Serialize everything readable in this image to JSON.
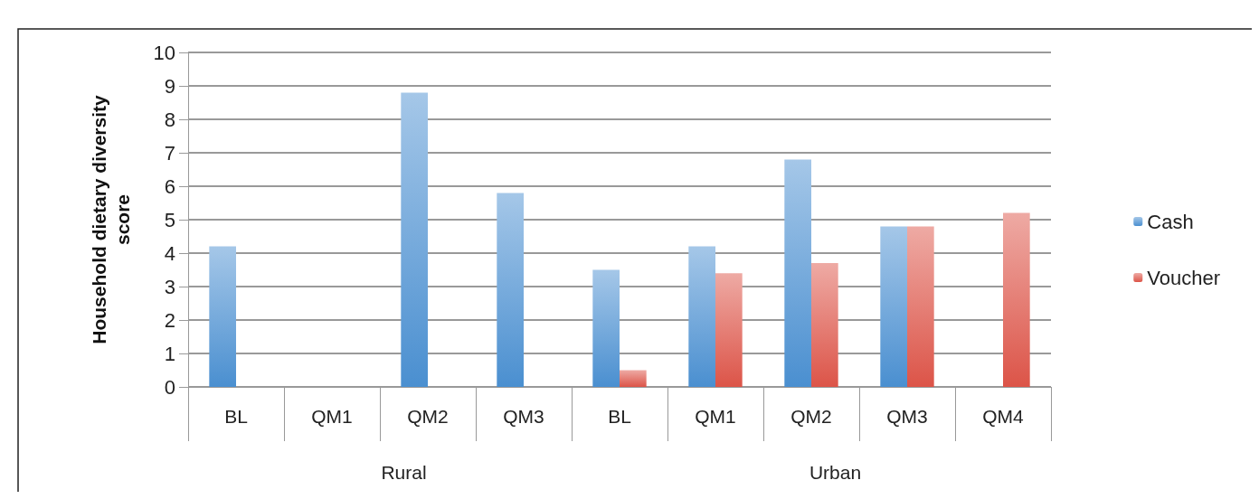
{
  "chart_data": {
    "type": "bar",
    "ylabel": "Household dietary diversity\nscore",
    "categories": [
      "BL",
      "QM1",
      "QM2",
      "QM3",
      "BL",
      "QM1",
      "QM2",
      "QM3",
      "QM4"
    ],
    "series": [
      {
        "name": "Cash",
        "color": "#4a8fd0",
        "values": [
          4.2,
          null,
          8.8,
          5.8,
          3.5,
          4.2,
          6.8,
          4.8,
          null
        ]
      },
      {
        "name": "Voucher",
        "color": "#dc5448",
        "values": [
          null,
          null,
          null,
          null,
          0.5,
          3.4,
          3.7,
          4.8,
          5.2
        ]
      }
    ],
    "annotations": [
      "Rural",
      "Urban"
    ],
    "ylim": [
      0,
      10
    ],
    "yticks": [
      0,
      1,
      2,
      3,
      4,
      5,
      6,
      7,
      8,
      9,
      10
    ],
    "grid": "y",
    "legend": "right"
  }
}
